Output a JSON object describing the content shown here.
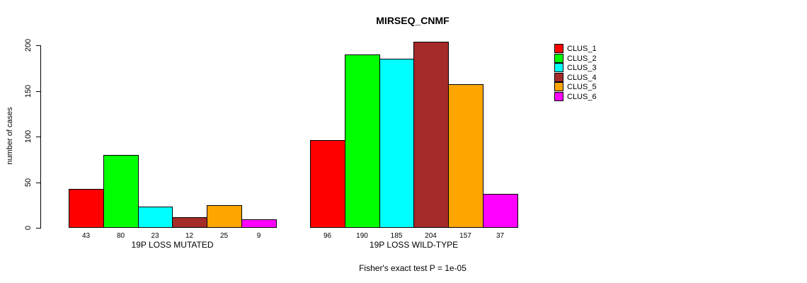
{
  "title": "MIRSEQ_CNMF",
  "caption": "Fisher's exact test P = 1e-05",
  "legend": {
    "items": [
      {
        "label": "CLUS_1",
        "color": "#FF0000"
      },
      {
        "label": "CLUS_2",
        "color": "#00FF00"
      },
      {
        "label": "CLUS_3",
        "color": "#00FFFF"
      },
      {
        "label": "CLUS_4",
        "color": "#A52A2A"
      },
      {
        "label": "CLUS_5",
        "color": "#FFA500"
      },
      {
        "label": "CLUS_6",
        "color": "#FF00FF"
      }
    ]
  },
  "chart_data": {
    "type": "bar",
    "title": "MIRSEQ_CNMF",
    "ylabel": "number of cases",
    "xlabel": "",
    "ylim": [
      0,
      200
    ],
    "yticks": [
      0,
      50,
      100,
      150,
      200
    ],
    "grid": false,
    "legend_position": "right",
    "categories": [
      "CLUS_1",
      "CLUS_2",
      "CLUS_3",
      "CLUS_4",
      "CLUS_5",
      "CLUS_6"
    ],
    "series_colors": [
      "#FF0000",
      "#00FF00",
      "#00FFFF",
      "#A52A2A",
      "#FFA500",
      "#FF00FF"
    ],
    "groups": [
      {
        "label": "19P LOSS MUTATED",
        "values": [
          43,
          80,
          23,
          12,
          25,
          9
        ]
      },
      {
        "label": "19P LOSS WILD-TYPE",
        "values": [
          96,
          190,
          185,
          204,
          157,
          37
        ]
      }
    ],
    "annotation": "Fisher's exact test P = 1e-05"
  }
}
